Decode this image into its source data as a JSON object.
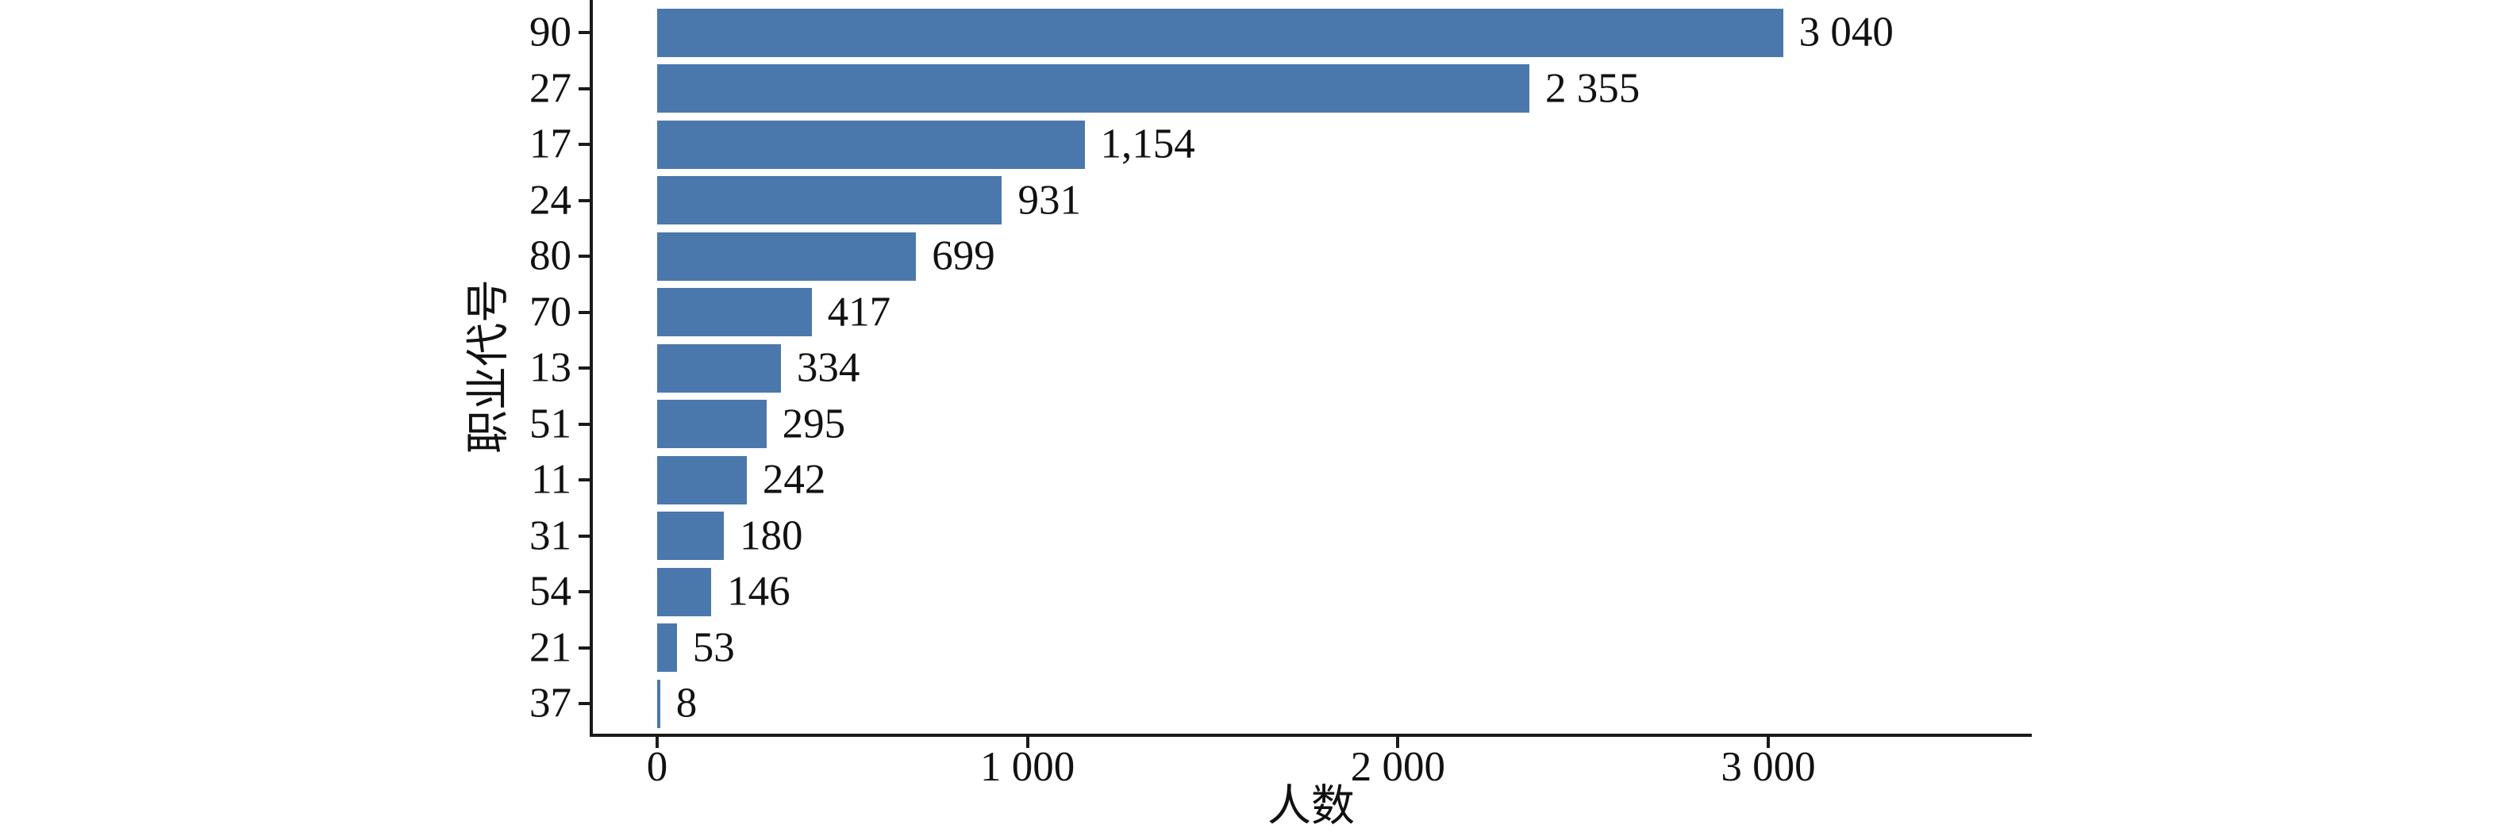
{
  "chart_data": {
    "type": "bar",
    "orientation": "horizontal",
    "title": "",
    "xlabel": "人数",
    "ylabel": "职业代号",
    "categories": [
      "90",
      "27",
      "17",
      "24",
      "80",
      "70",
      "13",
      "51",
      "11",
      "31",
      "54",
      "21",
      "37"
    ],
    "values": [
      3040,
      2355,
      1154,
      931,
      699,
      417,
      334,
      295,
      242,
      180,
      146,
      53,
      8
    ],
    "value_labels": [
      "3 040",
      "2 355",
      "1,154",
      "931",
      "699",
      "417",
      "334",
      "295",
      "242",
      "180",
      "146",
      "53",
      "8"
    ],
    "x_ticks": [
      {
        "value": 0,
        "label": "0"
      },
      {
        "value": 1000,
        "label": "1 000"
      },
      {
        "value": 2000,
        "label": "2 000"
      },
      {
        "value": 3000,
        "label": "3 000"
      }
    ],
    "xlim": [
      0,
      3712
    ],
    "grid": false,
    "legend": null,
    "bar_color": "#4a78ad",
    "axis_color": "#1a1a1a",
    "text_color": "#111111"
  }
}
